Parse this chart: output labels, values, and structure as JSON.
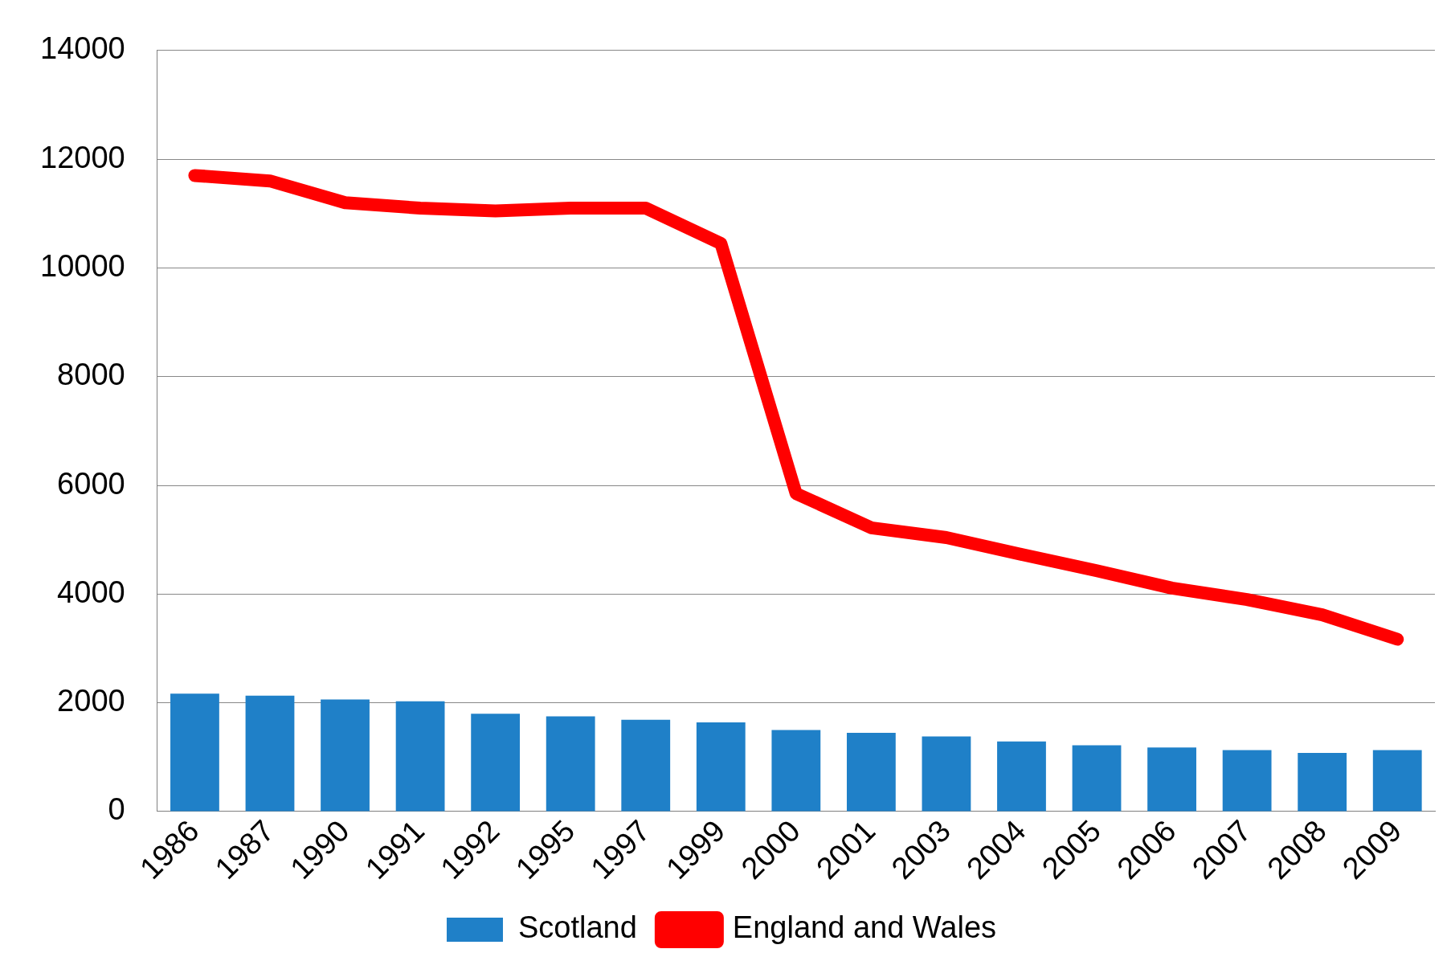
{
  "chart_data": {
    "type": "bar",
    "categories": [
      "1986",
      "1987",
      "1990",
      "1991",
      "1992",
      "1995",
      "1997",
      "1999",
      "2000",
      "2001",
      "2003",
      "2004",
      "2005",
      "2006",
      "2007",
      "2008",
      "2009"
    ],
    "series": [
      {
        "name": "Scotland",
        "color": "#1f80c8",
        "values": [
          2170,
          2130,
          2060,
          2030,
          1800,
          1750,
          1690,
          1640,
          1500,
          1450,
          1380,
          1290,
          1220,
          1180,
          1130,
          1080,
          1130
        ]
      },
      {
        "name": "England and Wales",
        "type": "line",
        "color": "#ff0000",
        "values": [
          11700,
          11600,
          11200,
          11100,
          11050,
          11100,
          11100,
          10450,
          5850,
          5220,
          5040,
          4730,
          4430,
          4110,
          3900,
          3620,
          3170
        ]
      }
    ],
    "ylim": [
      0,
      14000
    ],
    "yticks": [
      0,
      2000,
      4000,
      6000,
      8000,
      10000,
      12000,
      14000
    ],
    "grid": "y",
    "legend": "bottom",
    "marker": "none"
  }
}
